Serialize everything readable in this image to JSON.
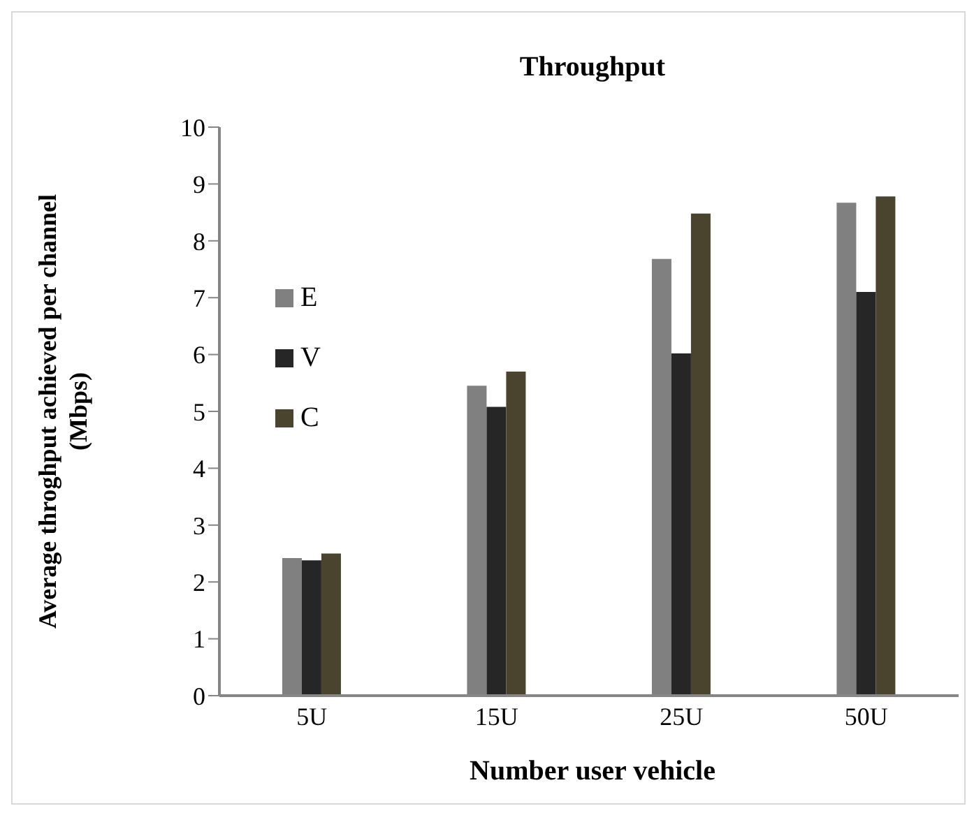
{
  "chart_data": {
    "type": "bar",
    "title": "Throughput",
    "xlabel": "Number user vehicle",
    "ylabel": "Average throghput achieved per channel\n(Mbps)",
    "categories": [
      "5U",
      "15U",
      "25U",
      "50U"
    ],
    "series": [
      {
        "name": "E",
        "color": "#808080",
        "values": [
          2.42,
          5.45,
          7.68,
          8.67
        ]
      },
      {
        "name": "V",
        "color": "#262626",
        "values": [
          2.38,
          5.08,
          6.02,
          7.1
        ]
      },
      {
        "name": "C",
        "color": "#4a432d",
        "values": [
          2.5,
          5.7,
          8.48,
          8.78
        ]
      }
    ],
    "ylim": [
      0,
      10
    ],
    "yticks": [
      0,
      1,
      2,
      3,
      4,
      5,
      6,
      7,
      8,
      9,
      10
    ],
    "grid": false,
    "legend": "top left"
  }
}
